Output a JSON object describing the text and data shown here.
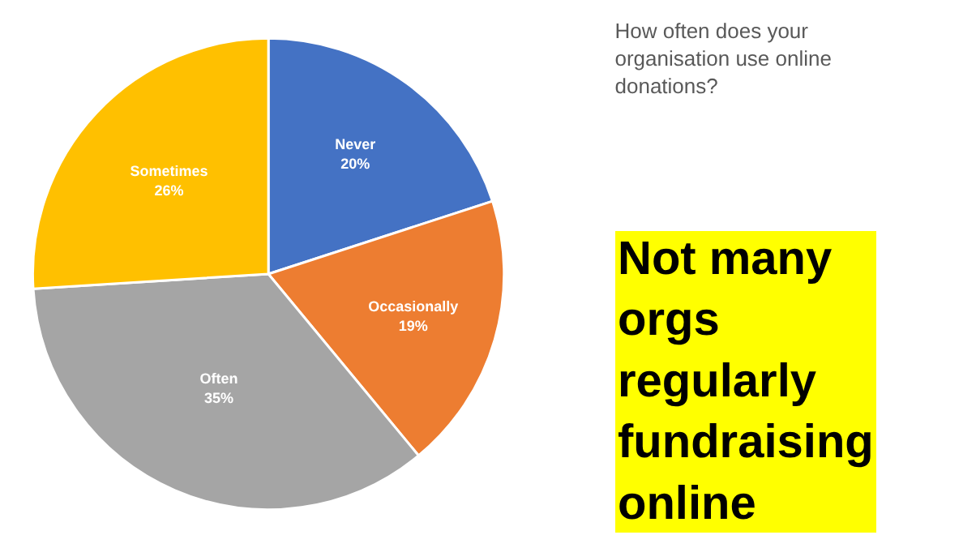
{
  "chart_data": {
    "type": "pie",
    "title": "How often does your organisation use online donations?",
    "annotations": [
      "Not many orgs regularly fundraising online"
    ],
    "categories": [
      "Never",
      "Occasionally",
      "Often",
      "Sometimes"
    ],
    "values": [
      20,
      19,
      35,
      26
    ],
    "value_labels": [
      "20%",
      "19%",
      "35%",
      "26%"
    ],
    "colors": [
      "#4472c4",
      "#ed7d31",
      "#a5a5a5",
      "#ffc000"
    ],
    "legend": false
  }
}
